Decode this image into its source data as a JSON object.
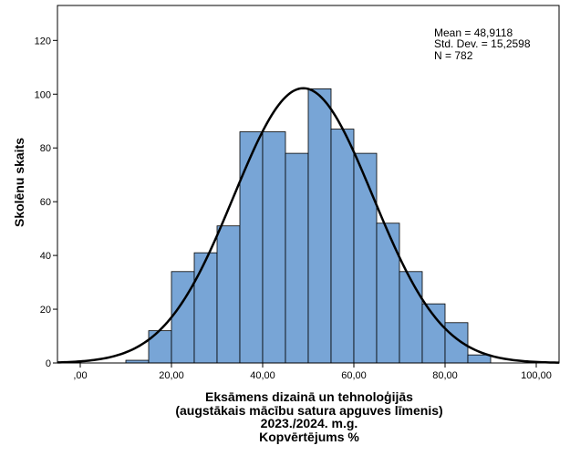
{
  "chart_data": {
    "type": "histogram",
    "xlabel_lines": [
      "Eksāmens dizainā un tehnoloģijās",
      "(augstākais mācību satura apguves līmenis)",
      "2023./2024. m.g.",
      "Kopvērtējums %"
    ],
    "ylabel": "Skolēnu skaits",
    "xlim": [
      -5,
      105
    ],
    "ylim": [
      0,
      133
    ],
    "x_ticks": [
      0,
      20,
      40,
      60,
      80,
      100
    ],
    "x_tick_labels": [
      ",00",
      "20,00",
      "40,00",
      "60,00",
      "80,00",
      "100,00"
    ],
    "y_ticks": [
      0,
      20,
      40,
      60,
      80,
      100,
      120
    ],
    "y_tick_labels": [
      "0",
      "20",
      "40",
      "60",
      "80",
      "100",
      "120"
    ],
    "bin_width": 5,
    "bins": [
      {
        "start": 10,
        "count": 1
      },
      {
        "start": 15,
        "count": 12
      },
      {
        "start": 20,
        "count": 34
      },
      {
        "start": 25,
        "count": 41
      },
      {
        "start": 30,
        "count": 51
      },
      {
        "start": 35,
        "count": 86
      },
      {
        "start": 40,
        "count": 86
      },
      {
        "start": 45,
        "count": 78
      },
      {
        "start": 50,
        "count": 102
      },
      {
        "start": 55,
        "count": 87
      },
      {
        "start": 60,
        "count": 78
      },
      {
        "start": 65,
        "count": 52
      },
      {
        "start": 70,
        "count": 34
      },
      {
        "start": 75,
        "count": 22
      },
      {
        "start": 80,
        "count": 15
      },
      {
        "start": 85,
        "count": 3
      }
    ],
    "normal_curve": {
      "mean": 48.9118,
      "sd": 15.2598,
      "n": 782
    },
    "stats_text": [
      "Mean = 48,9118",
      "Std. Dev. = 15,2598",
      "N = 782"
    ],
    "colors": {
      "bar_fill": "#78A5D6",
      "bar_stroke": "#000000",
      "curve": "#000000"
    }
  }
}
